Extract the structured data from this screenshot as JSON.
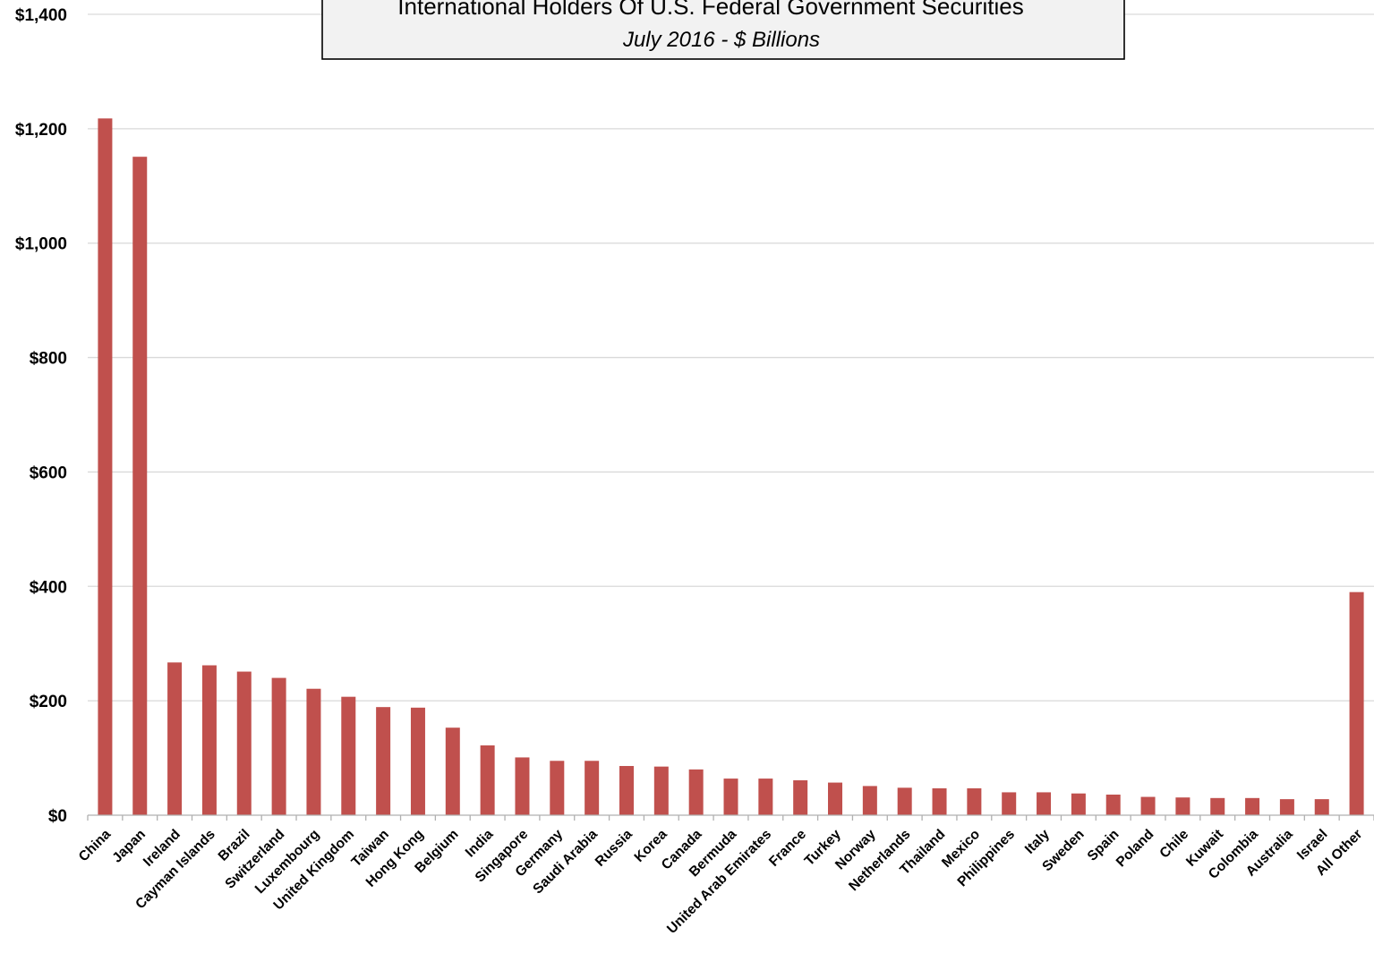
{
  "chart_data": {
    "type": "bar",
    "title": "International Holders Of U.S. Federal Government Securities",
    "subtitle": "July 2016 - $ Billions",
    "xlabel": "",
    "ylabel": "",
    "ylim": [
      0,
      1400
    ],
    "yticks": [
      0,
      200,
      400,
      600,
      800,
      1000,
      1200,
      1400
    ],
    "ytick_labels": [
      "$0",
      "$200",
      "$400",
      "$600",
      "$800",
      "$1,000",
      "$1,200",
      "$1,400"
    ],
    "grid": true,
    "legend": "none",
    "bar_color": "#c0504d",
    "categories": [
      "China",
      "Japan",
      "Ireland",
      "Cayman Islands",
      "Brazil",
      "Switzerland",
      "Luxembourg",
      "United Kingdom",
      "Taiwan",
      "Hong Kong",
      "Belgium",
      "India",
      "Singapore",
      "Germany",
      "Saudi Arabia",
      "Russia",
      "Korea",
      "Canada",
      "Bermuda",
      "United Arab Emirates",
      "France",
      "Turkey",
      "Norway",
      "Netherlands",
      "Thailand",
      "Mexico",
      "Philippines",
      "Italy",
      "Sweden",
      "Spain",
      "Poland",
      "Chile",
      "Kuwait",
      "Colombia",
      "Australia",
      "Israel",
      "All Other"
    ],
    "values": [
      1218,
      1151,
      267,
      262,
      251,
      240,
      221,
      207,
      189,
      188,
      153,
      122,
      101,
      95,
      95,
      86,
      85,
      80,
      64,
      64,
      61,
      57,
      51,
      48,
      47,
      47,
      40,
      40,
      38,
      36,
      32,
      31,
      30,
      30,
      28,
      28,
      390
    ]
  }
}
